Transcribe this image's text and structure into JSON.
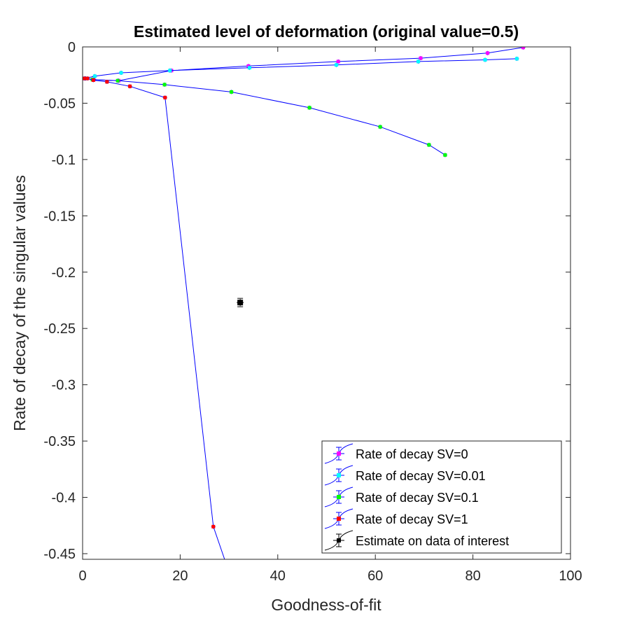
{
  "chart_data": {
    "type": "scatter",
    "title": "Estimated level of deformation (original value=0.5)",
    "xlabel": "Goodness-of-fit",
    "ylabel": "Rate of decay of the singular values",
    "xlim": [
      0,
      100
    ],
    "ylim": [
      -0.455,
      0.0
    ],
    "x_ticks": [
      0,
      20,
      40,
      60,
      80,
      100
    ],
    "x_tick_labels": [
      "0",
      "20",
      "40",
      "60",
      "80",
      "100"
    ],
    "y_ticks": [
      0,
      -0.05,
      -0.1,
      -0.15,
      -0.2,
      -0.25,
      -0.3,
      -0.35,
      -0.4,
      -0.45
    ],
    "y_tick_labels": [
      "0",
      "-0.05",
      "-0.1",
      "-0.15",
      "-0.2",
      "-0.25",
      "-0.3",
      "-0.35",
      "-0.4",
      "-0.45"
    ],
    "grid": false,
    "legend_position": "bottom-right",
    "line_color": "#0000ff",
    "error_bar_color": "#0000ff",
    "series": [
      {
        "name": "Rate of decay SV=0",
        "marker_color": "#ff00ff",
        "points": [
          [
            0.5,
            -0.028
          ],
          [
            2.3,
            -0.029
          ],
          [
            7.4,
            -0.03
          ],
          [
            18.2,
            -0.021
          ],
          [
            34.0,
            -0.017
          ],
          [
            52.4,
            -0.013
          ],
          [
            69.3,
            -0.01
          ],
          [
            83.0,
            -0.0055
          ],
          [
            90.3,
            -0.0005
          ]
        ]
      },
      {
        "name": "Rate of decay SV=0.01",
        "marker_color": "#00ffff",
        "points": [
          [
            0.5,
            -0.028
          ],
          [
            2.5,
            -0.026
          ],
          [
            7.9,
            -0.023
          ],
          [
            17.9,
            -0.021
          ],
          [
            34.2,
            -0.0185
          ],
          [
            52.0,
            -0.016
          ],
          [
            68.8,
            -0.013
          ],
          [
            82.5,
            -0.0115
          ],
          [
            89.0,
            -0.0105
          ]
        ]
      },
      {
        "name": "Rate of decay SV=0.1",
        "marker_color": "#00ff00",
        "points": [
          [
            0.6,
            -0.028
          ],
          [
            2.0,
            -0.029
          ],
          [
            7.2,
            -0.03
          ],
          [
            16.8,
            -0.0335
          ],
          [
            30.5,
            -0.04
          ],
          [
            46.5,
            -0.054
          ],
          [
            61.0,
            -0.071
          ],
          [
            71.0,
            -0.087
          ],
          [
            74.3,
            -0.096
          ]
        ]
      },
      {
        "name": "Rate of decay SV=1",
        "marker_color": "#ff0000",
        "points": [
          [
            0.3,
            -0.028
          ],
          [
            1.0,
            -0.028
          ],
          [
            2.2,
            -0.0295
          ],
          [
            5.0,
            -0.031
          ],
          [
            9.7,
            -0.035
          ],
          [
            16.9,
            -0.045
          ],
          [
            26.8,
            -0.426
          ],
          [
            29.5,
            -0.46
          ]
        ]
      },
      {
        "name": "Estimate on data of interest",
        "marker_color": "#000000",
        "points": [
          [
            32.3,
            -0.227
          ]
        ]
      }
    ]
  }
}
